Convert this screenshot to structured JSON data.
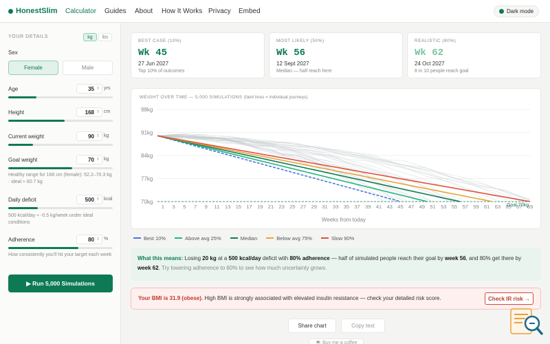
{
  "nav": {
    "brand": "HonestSlim",
    "links": [
      "Calculator",
      "Guides",
      "About",
      "How It Works",
      "Privacy",
      "Embed"
    ],
    "dark_mode": "Dark mode"
  },
  "sidebar": {
    "title": "YOUR DETAILS",
    "units": [
      "kg",
      "lbs"
    ],
    "sex_label": "Sex",
    "sex_options": [
      "Female",
      "Male"
    ],
    "age": {
      "label": "Age",
      "value": "35",
      "unit": "yrs",
      "fill": 0.27
    },
    "height": {
      "label": "Height",
      "value": "168",
      "unit": "cm",
      "fill": 0.54
    },
    "current": {
      "label": "Current weight",
      "value": "90",
      "unit": "kg",
      "fill": 0.24
    },
    "goal": {
      "label": "Goal weight",
      "value": "70",
      "unit": "kg",
      "fill": 0.61,
      "note": "Healthy range for 168 cm (female): 52.2–70.3 kg · ideal ≈ 60.7 kg"
    },
    "deficit": {
      "label": "Daily deficit",
      "value": "500",
      "unit": "kcal",
      "fill": 0.28,
      "note": "500 kcal/day ≈ -0.5 kg/week under ideal conditions"
    },
    "adherence": {
      "label": "Adherence",
      "value": "80",
      "unit": "%",
      "fill": 0.67,
      "note": "How consistently you'll hit your target each week"
    },
    "run_button": "▶ Run 5,000 Simulations"
  },
  "cards": [
    {
      "title": "BEST CASE (10%)",
      "week": "Wk 45",
      "date": "27 Jun 2027",
      "sub": "Top 10% of outcomes"
    },
    {
      "title": "MOST LIKELY (50%)",
      "week": "Wk 56",
      "date": "12 Sept 2027",
      "sub": "Median — half reach here"
    },
    {
      "title": "REALISTIC (80%)",
      "week": "Wk 62",
      "date": "24 Oct 2027",
      "sub": "8 in 10 people reach goal"
    }
  ],
  "chart": {
    "title": "WEIGHT OVER TIME — 5,000 SIMULATIONS",
    "subtitle": "(faint lines = individual journeys)",
    "xlabel": "Weeks from today",
    "goal_label": "Goal 70kg"
  },
  "chart_data": {
    "type": "line",
    "xlabel": "Weeks from today",
    "ylabel": "",
    "y_ticks": [
      "98kg",
      "91kg",
      "84kg",
      "77kg",
      "70kg"
    ],
    "ylim": [
      70,
      98
    ],
    "x_ticks": [
      1,
      3,
      5,
      7,
      9,
      11,
      13,
      15,
      17,
      19,
      21,
      23,
      25,
      27,
      29,
      31,
      33,
      35,
      37,
      39,
      41,
      43,
      45,
      47,
      49,
      51,
      53,
      55,
      57,
      59,
      61,
      63,
      65,
      67,
      69
    ],
    "xlim": [
      0,
      69
    ],
    "series": [
      {
        "name": "Best 10%",
        "color": "#4a76d9",
        "dashed": true,
        "x": [
          0,
          45
        ],
        "y": [
          90,
          70
        ]
      },
      {
        "name": "Above avg 25%",
        "color": "#20b57c",
        "x": [
          0,
          50
        ],
        "y": [
          90,
          70
        ]
      },
      {
        "name": "Median",
        "color": "#0e7a55",
        "x": [
          0,
          56
        ],
        "y": [
          90,
          70
        ]
      },
      {
        "name": "Below avg 75%",
        "color": "#e8a23a",
        "x": [
          0,
          62
        ],
        "y": [
          90,
          70
        ]
      },
      {
        "name": "Slow 90%",
        "color": "#e0503e",
        "x": [
          0,
          69
        ],
        "y": [
          90,
          70
        ]
      }
    ],
    "goal": 70
  },
  "means": {
    "label": "What this means:",
    "t1": " Losing ",
    "b1": "20 kg",
    "t2": " at a ",
    "b2": "500 kcal/day",
    "t3": " deficit with ",
    "b3": "80% adherence",
    "t4": " — half of simulated people reach their goal by ",
    "b4": "week 56",
    "t5": ", and 80% get there by ",
    "b5": "week 62",
    "t6": ".",
    "t7": " Try lowering adherence to 60% to see how much uncertainty grows."
  },
  "bmi": {
    "red": "Your BMI is 31.9 (obese).",
    "text": " High BMI is strongly associated with elevated insulin resistance — check your detailed risk score.",
    "button": "Check IR risk →"
  },
  "actions": {
    "share": "Share chart",
    "copy": "Copy text",
    "coffee": "☕ Buy me a coffee"
  }
}
